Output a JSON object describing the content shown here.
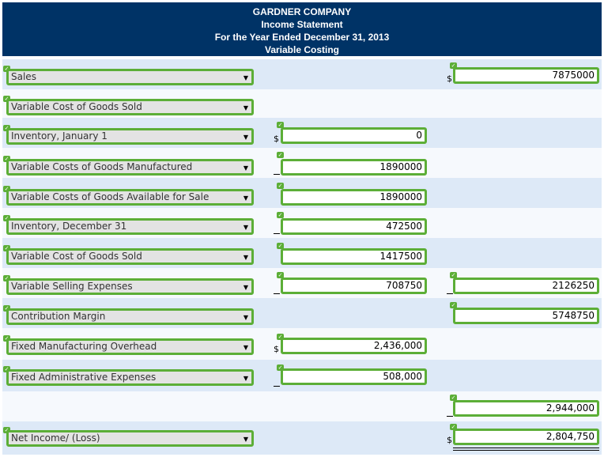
{
  "header": {
    "company": "GARDNER COMPANY",
    "statement": "Income Statement",
    "period": "For the Year Ended December 31, 2013",
    "method": "Variable Costing"
  },
  "rows": [
    {
      "label": "Sales",
      "mid": "",
      "right": "7875000"
    },
    {
      "label": "Variable Cost of Goods Sold",
      "mid": "",
      "right": ""
    },
    {
      "label": "Inventory, January 1",
      "mid": "0",
      "right": ""
    },
    {
      "label": "Variable Costs of Goods Manufactured",
      "mid": "1890000",
      "right": ""
    },
    {
      "label": "Variable Costs of Goods Available for Sale",
      "mid": "1890000",
      "right": ""
    },
    {
      "label": "Inventory, December 31",
      "mid": "472500",
      "right": ""
    },
    {
      "label": "Variable Cost of Goods Sold",
      "mid": "1417500",
      "right": ""
    },
    {
      "label": "Variable Selling Expenses",
      "mid": "708750",
      "right": "2126250"
    },
    {
      "label": "Contribution Margin",
      "mid": "",
      "right": "5748750"
    },
    {
      "label": "Fixed Manufacturing Overhead",
      "mid": "2,436,000",
      "right": ""
    },
    {
      "label": "Fixed Administrative Expenses",
      "mid": "508,000",
      "right": ""
    },
    {
      "label": "",
      "mid": "",
      "right": "2,944,000"
    },
    {
      "label": "Net Income/ (Loss)",
      "mid": "",
      "right": "2,804,750"
    }
  ],
  "symbols": {
    "dollar": "$",
    "check": "✓",
    "arrow": "▼"
  },
  "colors": {
    "header_bg": "#003366",
    "check_green": "#5cae37",
    "row_light": "#dde9f7"
  }
}
